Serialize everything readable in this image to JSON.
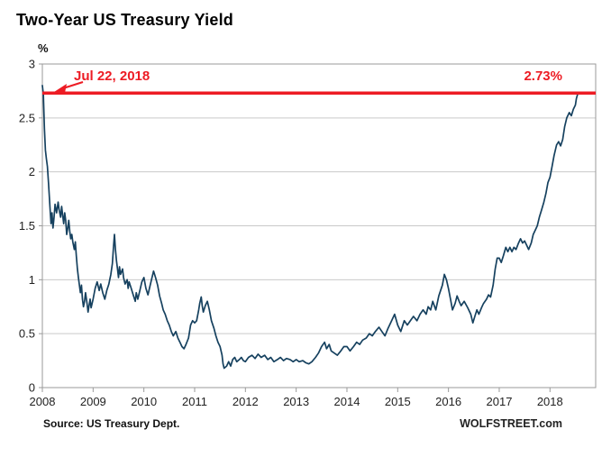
{
  "header": {
    "title": "Two-Year US Treasury Yield"
  },
  "footer": {
    "source": "Source: US Treasury Dept.",
    "brand": "WOLFSTREET.com"
  },
  "chart_data": {
    "type": "line",
    "title": "Two-Year US Treasury Yield",
    "xlabel": "",
    "ylabel": "%",
    "xlim": [
      2008,
      2018.9
    ],
    "ylim": [
      0,
      3
    ],
    "grid": "horizontal",
    "legend": "none",
    "highlight_value": 2.73,
    "annotations": {
      "date_label": "Jul 22, 2018",
      "value_label": "2.73%"
    },
    "colors": {
      "line": "#16415f",
      "highlight": "#ed1c24",
      "grid": "#c9c9c9",
      "frame": "#9a9a9a",
      "text": "#222222"
    },
    "yticks": [
      {
        "v": 0,
        "label": "0"
      },
      {
        "v": 0.5,
        "label": "0.5"
      },
      {
        "v": 1,
        "label": "1"
      },
      {
        "v": 1.5,
        "label": "1.5"
      },
      {
        "v": 2,
        "label": "2"
      },
      {
        "v": 2.5,
        "label": "2.5"
      },
      {
        "v": 3,
        "label": "3"
      }
    ],
    "xticks": [
      {
        "v": 2008,
        "label": "2008"
      },
      {
        "v": 2009,
        "label": "2009"
      },
      {
        "v": 2010,
        "label": "2010"
      },
      {
        "v": 2011,
        "label": "2011"
      },
      {
        "v": 2012,
        "label": "2012"
      },
      {
        "v": 2013,
        "label": "2013"
      },
      {
        "v": 2014,
        "label": "2014"
      },
      {
        "v": 2015,
        "label": "2015"
      },
      {
        "v": 2016,
        "label": "2016"
      },
      {
        "v": 2017,
        "label": "2017"
      },
      {
        "v": 2018,
        "label": "2018"
      }
    ],
    "series": [
      {
        "name": "Two-Year US Treasury Yield (%)",
        "points": [
          [
            2008.0,
            2.8
          ],
          [
            2008.02,
            2.72
          ],
          [
            2008.04,
            2.4
          ],
          [
            2008.06,
            2.2
          ],
          [
            2008.08,
            2.12
          ],
          [
            2008.1,
            2.05
          ],
          [
            2008.12,
            1.9
          ],
          [
            2008.15,
            1.68
          ],
          [
            2008.17,
            1.52
          ],
          [
            2008.19,
            1.62
          ],
          [
            2008.21,
            1.48
          ],
          [
            2008.23,
            1.58
          ],
          [
            2008.25,
            1.7
          ],
          [
            2008.28,
            1.62
          ],
          [
            2008.31,
            1.72
          ],
          [
            2008.33,
            1.65
          ],
          [
            2008.36,
            1.58
          ],
          [
            2008.38,
            1.68
          ],
          [
            2008.4,
            1.6
          ],
          [
            2008.42,
            1.52
          ],
          [
            2008.44,
            1.62
          ],
          [
            2008.46,
            1.55
          ],
          [
            2008.48,
            1.42
          ],
          [
            2008.5,
            1.48
          ],
          [
            2008.52,
            1.55
          ],
          [
            2008.54,
            1.45
          ],
          [
            2008.56,
            1.38
          ],
          [
            2008.58,
            1.42
          ],
          [
            2008.6,
            1.35
          ],
          [
            2008.63,
            1.28
          ],
          [
            2008.65,
            1.35
          ],
          [
            2008.67,
            1.22
          ],
          [
            2008.69,
            1.1
          ],
          [
            2008.71,
            1.02
          ],
          [
            2008.73,
            0.95
          ],
          [
            2008.75,
            0.88
          ],
          [
            2008.77,
            0.95
          ],
          [
            2008.79,
            0.82
          ],
          [
            2008.81,
            0.75
          ],
          [
            2008.83,
            0.8
          ],
          [
            2008.85,
            0.88
          ],
          [
            2008.88,
            0.78
          ],
          [
            2008.9,
            0.7
          ],
          [
            2008.92,
            0.76
          ],
          [
            2008.94,
            0.82
          ],
          [
            2008.96,
            0.74
          ],
          [
            2008.98,
            0.78
          ],
          [
            2009.0,
            0.82
          ],
          [
            2009.04,
            0.92
          ],
          [
            2009.08,
            0.98
          ],
          [
            2009.12,
            0.9
          ],
          [
            2009.15,
            0.96
          ],
          [
            2009.19,
            0.88
          ],
          [
            2009.23,
            0.82
          ],
          [
            2009.27,
            0.9
          ],
          [
            2009.31,
            0.96
          ],
          [
            2009.35,
            1.05
          ],
          [
            2009.38,
            1.15
          ],
          [
            2009.4,
            1.3
          ],
          [
            2009.42,
            1.42
          ],
          [
            2009.44,
            1.28
          ],
          [
            2009.46,
            1.18
          ],
          [
            2009.48,
            1.1
          ],
          [
            2009.5,
            1.02
          ],
          [
            2009.52,
            1.12
          ],
          [
            2009.54,
            1.05
          ],
          [
            2009.58,
            1.1
          ],
          [
            2009.6,
            1.02
          ],
          [
            2009.63,
            0.96
          ],
          [
            2009.67,
            1.0
          ],
          [
            2009.69,
            0.92
          ],
          [
            2009.71,
            0.98
          ],
          [
            2009.75,
            0.92
          ],
          [
            2009.79,
            0.86
          ],
          [
            2009.83,
            0.8
          ],
          [
            2009.85,
            0.88
          ],
          [
            2009.88,
            0.82
          ],
          [
            2009.92,
            0.9
          ],
          [
            2009.96,
            0.98
          ],
          [
            2010.0,
            1.02
          ],
          [
            2010.04,
            0.92
          ],
          [
            2010.08,
            0.86
          ],
          [
            2010.12,
            0.94
          ],
          [
            2010.15,
            1.0
          ],
          [
            2010.19,
            1.08
          ],
          [
            2010.23,
            1.02
          ],
          [
            2010.27,
            0.95
          ],
          [
            2010.31,
            0.85
          ],
          [
            2010.35,
            0.78
          ],
          [
            2010.38,
            0.72
          ],
          [
            2010.42,
            0.68
          ],
          [
            2010.46,
            0.62
          ],
          [
            2010.5,
            0.58
          ],
          [
            2010.54,
            0.52
          ],
          [
            2010.58,
            0.48
          ],
          [
            2010.63,
            0.52
          ],
          [
            2010.67,
            0.46
          ],
          [
            2010.71,
            0.42
          ],
          [
            2010.75,
            0.38
          ],
          [
            2010.79,
            0.36
          ],
          [
            2010.83,
            0.4
          ],
          [
            2010.88,
            0.46
          ],
          [
            2010.92,
            0.58
          ],
          [
            2010.96,
            0.62
          ],
          [
            2011.0,
            0.6
          ],
          [
            2011.04,
            0.62
          ],
          [
            2011.08,
            0.72
          ],
          [
            2011.1,
            0.78
          ],
          [
            2011.13,
            0.84
          ],
          [
            2011.15,
            0.76
          ],
          [
            2011.17,
            0.7
          ],
          [
            2011.21,
            0.76
          ],
          [
            2011.25,
            0.8
          ],
          [
            2011.29,
            0.72
          ],
          [
            2011.33,
            0.62
          ],
          [
            2011.38,
            0.55
          ],
          [
            2011.42,
            0.48
          ],
          [
            2011.46,
            0.42
          ],
          [
            2011.5,
            0.38
          ],
          [
            2011.54,
            0.3
          ],
          [
            2011.56,
            0.22
          ],
          [
            2011.58,
            0.18
          ],
          [
            2011.63,
            0.2
          ],
          [
            2011.67,
            0.24
          ],
          [
            2011.71,
            0.2
          ],
          [
            2011.75,
            0.26
          ],
          [
            2011.79,
            0.28
          ],
          [
            2011.83,
            0.24
          ],
          [
            2011.88,
            0.26
          ],
          [
            2011.92,
            0.28
          ],
          [
            2011.96,
            0.25
          ],
          [
            2012.0,
            0.24
          ],
          [
            2012.06,
            0.28
          ],
          [
            2012.13,
            0.3
          ],
          [
            2012.19,
            0.27
          ],
          [
            2012.25,
            0.31
          ],
          [
            2012.31,
            0.28
          ],
          [
            2012.38,
            0.3
          ],
          [
            2012.44,
            0.26
          ],
          [
            2012.5,
            0.28
          ],
          [
            2012.56,
            0.24
          ],
          [
            2012.63,
            0.26
          ],
          [
            2012.69,
            0.28
          ],
          [
            2012.75,
            0.25
          ],
          [
            2012.81,
            0.27
          ],
          [
            2012.88,
            0.26
          ],
          [
            2012.94,
            0.24
          ],
          [
            2013.0,
            0.26
          ],
          [
            2013.06,
            0.24
          ],
          [
            2013.13,
            0.25
          ],
          [
            2013.19,
            0.23
          ],
          [
            2013.25,
            0.22
          ],
          [
            2013.31,
            0.24
          ],
          [
            2013.38,
            0.28
          ],
          [
            2013.44,
            0.32
          ],
          [
            2013.5,
            0.38
          ],
          [
            2013.56,
            0.42
          ],
          [
            2013.6,
            0.36
          ],
          [
            2013.65,
            0.4
          ],
          [
            2013.69,
            0.34
          ],
          [
            2013.75,
            0.32
          ],
          [
            2013.81,
            0.3
          ],
          [
            2013.88,
            0.34
          ],
          [
            2013.94,
            0.38
          ],
          [
            2014.0,
            0.38
          ],
          [
            2014.06,
            0.34
          ],
          [
            2014.13,
            0.38
          ],
          [
            2014.19,
            0.42
          ],
          [
            2014.25,
            0.4
          ],
          [
            2014.31,
            0.44
          ],
          [
            2014.38,
            0.46
          ],
          [
            2014.44,
            0.5
          ],
          [
            2014.5,
            0.48
          ],
          [
            2014.56,
            0.52
          ],
          [
            2014.63,
            0.56
          ],
          [
            2014.69,
            0.52
          ],
          [
            2014.75,
            0.48
          ],
          [
            2014.81,
            0.55
          ],
          [
            2014.88,
            0.62
          ],
          [
            2014.94,
            0.68
          ],
          [
            2015.0,
            0.58
          ],
          [
            2015.06,
            0.52
          ],
          [
            2015.13,
            0.62
          ],
          [
            2015.19,
            0.58
          ],
          [
            2015.25,
            0.62
          ],
          [
            2015.31,
            0.66
          ],
          [
            2015.38,
            0.62
          ],
          [
            2015.44,
            0.68
          ],
          [
            2015.5,
            0.72
          ],
          [
            2015.56,
            0.68
          ],
          [
            2015.6,
            0.75
          ],
          [
            2015.65,
            0.72
          ],
          [
            2015.69,
            0.8
          ],
          [
            2015.75,
            0.72
          ],
          [
            2015.81,
            0.85
          ],
          [
            2015.88,
            0.95
          ],
          [
            2015.92,
            1.05
          ],
          [
            2015.96,
            1.0
          ],
          [
            2016.0,
            0.92
          ],
          [
            2016.04,
            0.82
          ],
          [
            2016.08,
            0.72
          ],
          [
            2016.13,
            0.78
          ],
          [
            2016.17,
            0.85
          ],
          [
            2016.21,
            0.8
          ],
          [
            2016.25,
            0.76
          ],
          [
            2016.31,
            0.8
          ],
          [
            2016.38,
            0.74
          ],
          [
            2016.44,
            0.68
          ],
          [
            2016.48,
            0.6
          ],
          [
            2016.52,
            0.66
          ],
          [
            2016.56,
            0.72
          ],
          [
            2016.6,
            0.68
          ],
          [
            2016.65,
            0.74
          ],
          [
            2016.69,
            0.78
          ],
          [
            2016.75,
            0.82
          ],
          [
            2016.79,
            0.86
          ],
          [
            2016.83,
            0.84
          ],
          [
            2016.88,
            0.95
          ],
          [
            2016.92,
            1.1
          ],
          [
            2016.96,
            1.2
          ],
          [
            2017.0,
            1.2
          ],
          [
            2017.04,
            1.16
          ],
          [
            2017.08,
            1.22
          ],
          [
            2017.13,
            1.3
          ],
          [
            2017.17,
            1.26
          ],
          [
            2017.21,
            1.3
          ],
          [
            2017.25,
            1.26
          ],
          [
            2017.29,
            1.3
          ],
          [
            2017.33,
            1.28
          ],
          [
            2017.38,
            1.34
          ],
          [
            2017.42,
            1.38
          ],
          [
            2017.46,
            1.34
          ],
          [
            2017.5,
            1.36
          ],
          [
            2017.54,
            1.32
          ],
          [
            2017.58,
            1.28
          ],
          [
            2017.63,
            1.34
          ],
          [
            2017.67,
            1.42
          ],
          [
            2017.71,
            1.46
          ],
          [
            2017.75,
            1.5
          ],
          [
            2017.79,
            1.58
          ],
          [
            2017.83,
            1.64
          ],
          [
            2017.88,
            1.72
          ],
          [
            2017.92,
            1.8
          ],
          [
            2017.96,
            1.9
          ],
          [
            2018.0,
            1.95
          ],
          [
            2018.04,
            2.05
          ],
          [
            2018.08,
            2.15
          ],
          [
            2018.13,
            2.25
          ],
          [
            2018.17,
            2.28
          ],
          [
            2018.21,
            2.24
          ],
          [
            2018.25,
            2.3
          ],
          [
            2018.29,
            2.42
          ],
          [
            2018.33,
            2.5
          ],
          [
            2018.38,
            2.55
          ],
          [
            2018.42,
            2.52
          ],
          [
            2018.46,
            2.58
          ],
          [
            2018.5,
            2.62
          ],
          [
            2018.52,
            2.68
          ],
          [
            2018.55,
            2.73
          ]
        ]
      }
    ]
  }
}
